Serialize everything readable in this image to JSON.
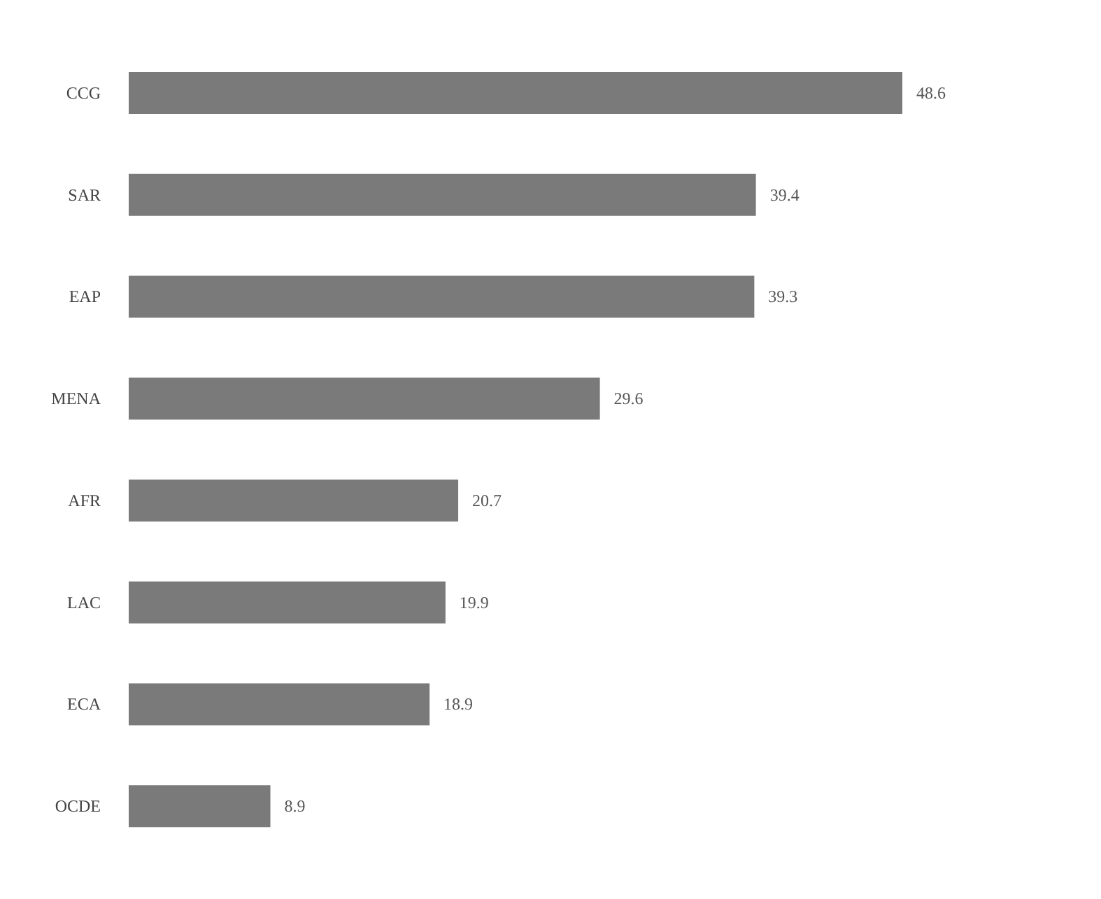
{
  "chart_data": {
    "type": "bar",
    "orientation": "horizontal",
    "categories": [
      "CCG",
      "SAR",
      "EAP",
      "MENA",
      "AFR",
      "LAC",
      "ECA",
      "OCDE"
    ],
    "values": [
      48.6,
      39.4,
      39.3,
      29.6,
      20.7,
      19.9,
      18.9,
      8.9
    ],
    "color": "#7a7a7a",
    "data_labels": true
  }
}
